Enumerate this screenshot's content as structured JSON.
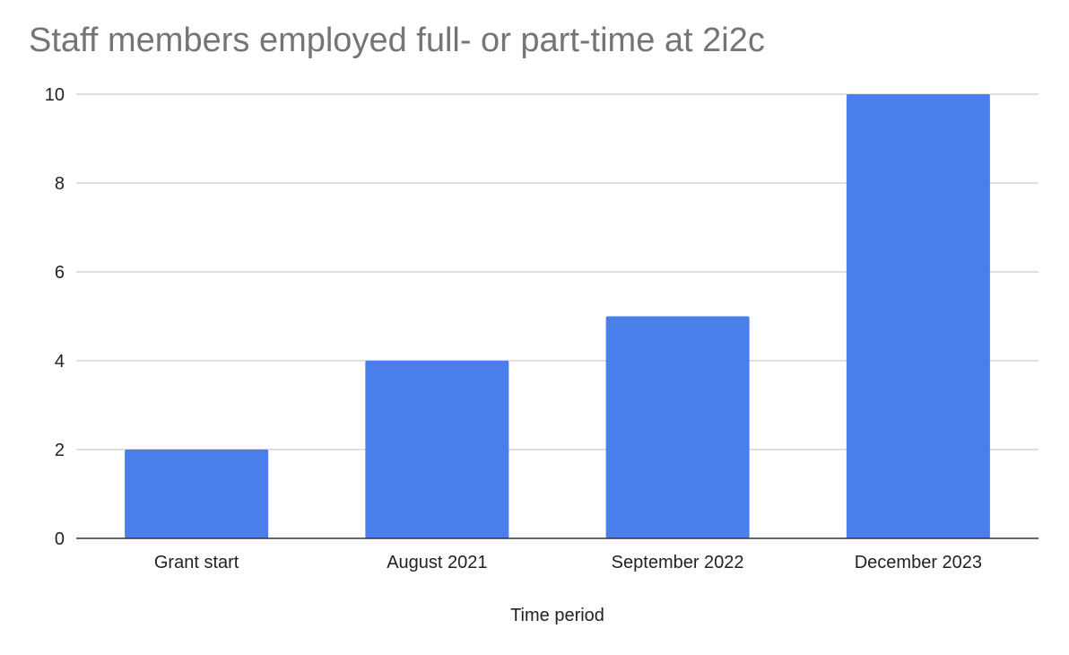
{
  "chart_data": {
    "type": "bar",
    "title": "Staff members employed full- or part-time at 2i2c",
    "xlabel": "Time period",
    "ylabel": "",
    "categories": [
      "Grant start",
      "August 2021",
      "September 2022",
      "December 2023"
    ],
    "values": [
      2,
      4,
      5,
      10
    ],
    "ylim": [
      0,
      10
    ],
    "yticks": [
      "0",
      "2",
      "4",
      "6",
      "8",
      "10"
    ],
    "grid": true,
    "legend": "none",
    "colors": {
      "bar": "#4a7eeb",
      "grid": "#cccccc",
      "axis": "#333333",
      "title": "#757575",
      "text": "#222222"
    }
  }
}
